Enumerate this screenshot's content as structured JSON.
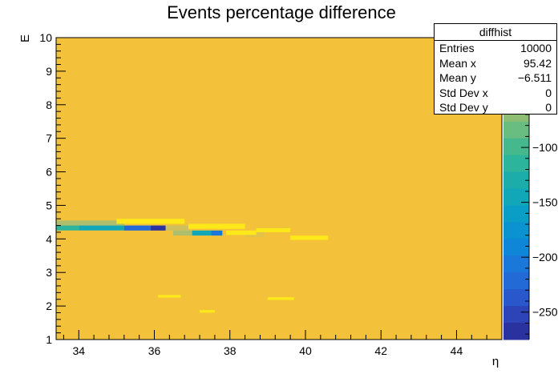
{
  "chart_data": {
    "type": "heatmap",
    "title": "Events percentage difference",
    "xlabel": "η",
    "ylabel": "E",
    "xlim": [
      33.4,
      45.2
    ],
    "ylim": [
      1,
      10
    ],
    "x_ticks": [
      "34",
      "36",
      "38",
      "40",
      "42",
      "44"
    ],
    "y_ticks": [
      "1",
      "2",
      "3",
      "4",
      "5",
      "6",
      "7",
      "8",
      "9",
      "10"
    ],
    "background_value": 0,
    "colorbar": {
      "range": [
        -275,
        0
      ],
      "ticks": [
        "−50",
        "−100",
        "−150",
        "−200",
        "−250"
      ],
      "tick_values": [
        -50,
        -100,
        -150,
        -200,
        -250
      ],
      "colors": [
        "#f3c23a",
        "#e3c24a",
        "#cdc05d",
        "#aebe6d",
        "#8ebe74",
        "#69bd80",
        "#45b98d",
        "#2cb49c",
        "#1cadaa",
        "#12a7b8",
        "#0a9ec6",
        "#0a93d0",
        "#0f86d8",
        "#1a78db",
        "#226ad6",
        "#2858cc",
        "#2c44b8",
        "#2a32a0"
      ]
    },
    "cells": [
      {
        "x0": 33.4,
        "x1": 35.2,
        "y0": 4.4,
        "y1": 4.55,
        "v": -60
      },
      {
        "x0": 33.4,
        "x1": 34.0,
        "y0": 4.25,
        "y1": 4.4,
        "v": -120
      },
      {
        "x0": 34.0,
        "x1": 35.2,
        "y0": 4.25,
        "y1": 4.4,
        "v": -150
      },
      {
        "x0": 35.2,
        "x1": 35.9,
        "y0": 4.25,
        "y1": 4.4,
        "v": -220
      },
      {
        "x0": 35.9,
        "x1": 36.3,
        "y0": 4.25,
        "y1": 4.4,
        "v": -260
      },
      {
        "x0": 36.3,
        "x1": 36.9,
        "y0": 4.25,
        "y1": 4.4,
        "v": -40
      },
      {
        "x0": 36.5,
        "x1": 37.0,
        "y0": 4.1,
        "y1": 4.25,
        "v": -60
      },
      {
        "x0": 37.0,
        "x1": 37.5,
        "y0": 4.1,
        "y1": 4.25,
        "v": -150
      },
      {
        "x0": 37.5,
        "x1": 37.8,
        "y0": 4.1,
        "y1": 4.25,
        "v": -200
      },
      {
        "x0": 38.4,
        "x1": 38.9,
        "y0": 4.05,
        "y1": 4.2,
        "v": -20
      },
      {
        "x0": 38.9,
        "x1": 39.6,
        "y0": 4.05,
        "y1": 4.2,
        "v": -10
      },
      {
        "x0": 33.4,
        "x1": 35.2,
        "y0": 4.1,
        "y1": 4.25,
        "v": -10
      },
      {
        "x0": 33.4,
        "x1": 35.2,
        "y0": 3.95,
        "y1": 4.1,
        "v": -8
      },
      {
        "x0": 33.4,
        "x1": 35.0,
        "y0": 2.95,
        "y1": 3.05,
        "v": -10
      },
      {
        "x0": 35.3,
        "x1": 35.6,
        "y0": 2.95,
        "y1": 3.05,
        "v": -5
      }
    ],
    "positive_cells": [
      {
        "x0": 35.0,
        "x1": 36.8,
        "y0": 4.45,
        "y1": 4.6
      },
      {
        "x0": 36.9,
        "x1": 38.4,
        "y0": 4.3,
        "y1": 4.45
      },
      {
        "x0": 37.9,
        "x1": 38.7,
        "y0": 4.12,
        "y1": 4.25
      },
      {
        "x0": 38.7,
        "x1": 39.6,
        "y0": 4.2,
        "y1": 4.32
      },
      {
        "x0": 39.6,
        "x1": 40.6,
        "y0": 3.97,
        "y1": 4.1
      },
      {
        "x0": 36.1,
        "x1": 36.7,
        "y0": 2.25,
        "y1": 2.33
      },
      {
        "x0": 39.0,
        "x1": 39.7,
        "y0": 2.18,
        "y1": 2.26
      },
      {
        "x0": 37.2,
        "x1": 37.6,
        "y0": 1.8,
        "y1": 1.88
      }
    ]
  },
  "stats": {
    "title": "diffhist",
    "rows": [
      {
        "label": "Entries",
        "value": "10000"
      },
      {
        "label": "Mean x",
        "value": "95.42"
      },
      {
        "label": "Mean y",
        "value": "−6.511"
      },
      {
        "label": "Std Dev x",
        "value": "0"
      },
      {
        "label": "Std Dev y",
        "value": "0"
      }
    ]
  }
}
